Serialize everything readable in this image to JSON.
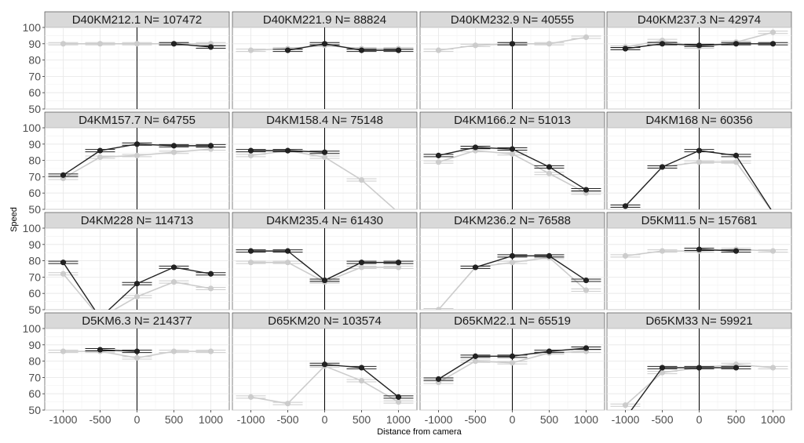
{
  "chart_data": {
    "type": "line",
    "facet_layout": {
      "rows": 4,
      "cols": 4
    },
    "xlabel": "Distance from camera",
    "ylabel": "Speed",
    "xlim": [
      -1250,
      1250
    ],
    "ylim": [
      50,
      100
    ],
    "x_ticks": [
      -1000,
      -500,
      0,
      500,
      1000
    ],
    "x_tick_labels": [
      "-1000",
      "-500",
      "0",
      "500",
      "1000"
    ],
    "y_ticks": [
      50,
      60,
      70,
      80,
      90,
      100
    ],
    "y_tick_labels": [
      "50",
      "60",
      "70",
      "80",
      "90",
      "100"
    ],
    "vertical_reference_x": 0,
    "grid": true,
    "series_styles": [
      {
        "key": "dark",
        "color": "#222222"
      },
      {
        "key": "light",
        "color": "#cccccc"
      }
    ],
    "x": [
      -1000,
      -500,
      0,
      500,
      1000
    ],
    "panels": [
      {
        "title": "D40KM212.1 N= 107472",
        "series": [
          {
            "style": "light",
            "values": [
              90,
              90,
              90,
              90,
              90
            ]
          },
          {
            "style": "dark",
            "values": [
              null,
              null,
              null,
              90,
              88
            ]
          }
        ]
      },
      {
        "title": "D40KM221.9 N= 88824",
        "series": [
          {
            "style": "light",
            "values": [
              86,
              87,
              89,
              87,
              87
            ]
          },
          {
            "style": "dark",
            "values": [
              null,
              86,
              90,
              86,
              86
            ]
          }
        ]
      },
      {
        "title": "D40KM232.9 N= 40555",
        "series": [
          {
            "style": "light",
            "values": [
              86,
              89,
              90,
              90,
              94
            ]
          },
          {
            "style": "dark",
            "values": [
              null,
              null,
              90,
              null,
              null
            ]
          }
        ]
      },
      {
        "title": "D40KM237.3 N= 42974",
        "series": [
          {
            "style": "light",
            "values": [
              88,
              92,
              88,
              91,
              97
            ]
          },
          {
            "style": "dark",
            "values": [
              87,
              90,
              89,
              90,
              90
            ]
          }
        ]
      },
      {
        "title": "D4KM157.7 N= 64755",
        "series": [
          {
            "style": "light",
            "values": [
              69,
              82,
              83,
              85,
              87
            ]
          },
          {
            "style": "dark",
            "values": [
              71,
              86,
              90,
              89,
              89
            ]
          }
        ]
      },
      {
        "title": "D4KM158.4 N= 75148",
        "series": [
          {
            "style": "light",
            "values": [
              83,
              86,
              82,
              68,
              48
            ]
          },
          {
            "style": "dark",
            "values": [
              86,
              86,
              85,
              null,
              null
            ]
          }
        ]
      },
      {
        "title": "D4KM166.2 N= 51013",
        "series": [
          {
            "style": "light",
            "values": [
              79,
              86,
              84,
              72,
              60
            ]
          },
          {
            "style": "dark",
            "values": [
              83,
              88,
              87,
              76,
              62
            ]
          }
        ]
      },
      {
        "title": "D4KM168 N= 60356",
        "series": [
          {
            "style": "light",
            "values": [
              52,
              76,
              79,
              79,
              48
            ]
          },
          {
            "style": "dark",
            "values": [
              52,
              76,
              86,
              83,
              48
            ]
          }
        ]
      },
      {
        "title": "D4KM228 N= 114713",
        "series": [
          {
            "style": "light",
            "values": [
              72,
              45,
              58,
              67,
              63
            ]
          },
          {
            "style": "dark",
            "values": [
              79,
              45,
              66,
              76,
              72
            ]
          }
        ]
      },
      {
        "title": "D4KM235.4 N= 61430",
        "series": [
          {
            "style": "light",
            "values": [
              79,
              79,
              67,
              76,
              76
            ]
          },
          {
            "style": "dark",
            "values": [
              86,
              86,
              68,
              79,
              79
            ]
          }
        ]
      },
      {
        "title": "D4KM236.2 N= 76588",
        "series": [
          {
            "style": "light",
            "values": [
              50,
              76,
              79,
              82,
              62
            ]
          },
          {
            "style": "dark",
            "values": [
              null,
              76,
              83,
              83,
              68
            ]
          }
        ]
      },
      {
        "title": "D5KM11.5 N= 157681",
        "series": [
          {
            "style": "light",
            "values": [
              83,
              86,
              86,
              87,
              86
            ]
          },
          {
            "style": "dark",
            "values": [
              null,
              null,
              87,
              86,
              null
            ]
          }
        ]
      },
      {
        "title": "D5KM6.3 N= 214377",
        "series": [
          {
            "style": "light",
            "values": [
              86,
              86,
              82,
              86,
              86
            ]
          },
          {
            "style": "dark",
            "values": [
              null,
              87,
              86,
              null,
              null
            ]
          }
        ]
      },
      {
        "title": "D65KM20 N= 103574",
        "series": [
          {
            "style": "light",
            "values": [
              58,
              54,
              77,
              68,
              55
            ]
          },
          {
            "style": "dark",
            "values": [
              null,
              null,
              78,
              76,
              58
            ]
          }
        ]
      },
      {
        "title": "D65KM22.1 N= 65519",
        "series": [
          {
            "style": "light",
            "values": [
              67,
              80,
              79,
              85,
              86
            ]
          },
          {
            "style": "dark",
            "values": [
              69,
              83,
              83,
              86,
              88
            ]
          }
        ]
      },
      {
        "title": "D65KM33 N= 59921",
        "series": [
          {
            "style": "light",
            "values": [
              53,
              73,
              76,
              78,
              76
            ]
          },
          {
            "style": "dark",
            "values": [
              45,
              76,
              76,
              76,
              null
            ]
          }
        ]
      }
    ]
  }
}
